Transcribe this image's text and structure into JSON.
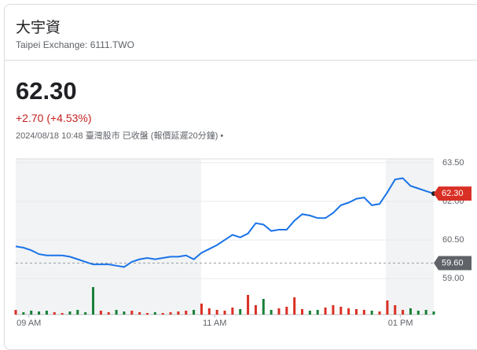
{
  "header": {
    "title": "大宇資",
    "subtitle": "Taipei Exchange: 6111.TWO",
    "price": "62.30",
    "change": "+2.70 (+4.53%)",
    "timestamp": "2024/08/18 10:48 臺灣股市 已收盤 (報價延遲20分鐘) •"
  },
  "chart_data": {
    "type": "line",
    "series": [
      {
        "color": "#1a73e8",
        "values": [
          60.25,
          60.2,
          60.1,
          59.95,
          59.9,
          59.9,
          59.9,
          59.85,
          59.75,
          59.65,
          59.55,
          59.55,
          59.55,
          59.5,
          59.45,
          59.65,
          59.75,
          59.8,
          59.75,
          59.8,
          59.85,
          59.85,
          59.9,
          59.75,
          60.0,
          60.15,
          60.3,
          60.5,
          60.7,
          60.6,
          60.75,
          61.15,
          61.1,
          60.85,
          60.9,
          60.9,
          61.25,
          61.5,
          61.45,
          61.35,
          61.35,
          61.55,
          61.85,
          61.95,
          62.1,
          62.15,
          61.85,
          61.9,
          62.35,
          62.85,
          62.9,
          62.6,
          62.5,
          62.4,
          62.3
        ]
      }
    ],
    "volume": {
      "up_color": "#d93025",
      "down_color": "#188038",
      "values": [
        6,
        3,
        5,
        4,
        5,
        3,
        2,
        4,
        6,
        3,
        35,
        5,
        3,
        6,
        4,
        5,
        3,
        2,
        3,
        2,
        3,
        4,
        5,
        6,
        14,
        8,
        6,
        5,
        9,
        7,
        25,
        12,
        20,
        6,
        8,
        10,
        22,
        7,
        5,
        6,
        9,
        12,
        10,
        8,
        7,
        6,
        5,
        4,
        18,
        12,
        6,
        8,
        5,
        6,
        4
      ],
      "vlim": [
        0,
        100
      ]
    },
    "current": {
      "value": 62.3,
      "label": "62.30",
      "color": "#d93025"
    },
    "previous_close": {
      "value": 59.6,
      "label": "59.60",
      "color": "#5f6368"
    },
    "xlim": [
      0,
      54
    ],
    "xticks": [
      {
        "value": 1.7,
        "label": "09 AM"
      },
      {
        "value": 25.7,
        "label": "11 AM"
      },
      {
        "value": 49.7,
        "label": "01 PM"
      }
    ],
    "ylim": [
      57.6,
      63.65
    ],
    "yticks": [
      {
        "value": 63.5,
        "label": "63.50"
      },
      {
        "value": 62,
        "label": "62.00"
      },
      {
        "value": 60.5,
        "label": "60.50"
      },
      {
        "value": 59,
        "label": "59.00"
      }
    ],
    "grid": true
  }
}
